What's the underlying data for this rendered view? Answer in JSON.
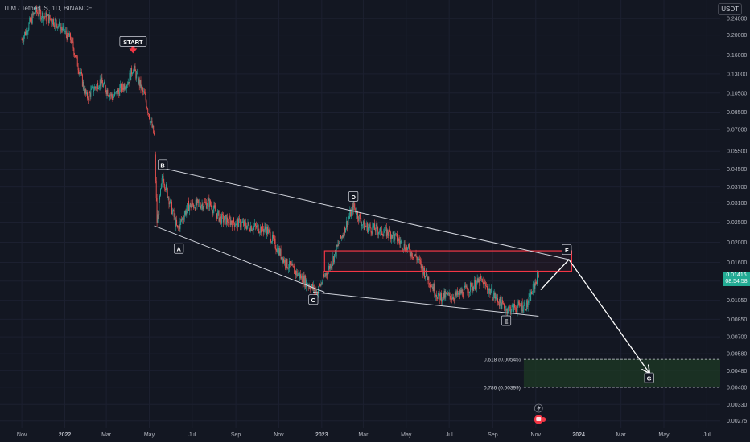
{
  "header": {
    "symbol_text": "TLM / TetherUS, 1D, BINANCE",
    "currency": "USDT"
  },
  "price_tag": {
    "value": "0.01416",
    "countdown": "08:54:58"
  },
  "icons": [
    "lightning-icon",
    "flag-icon"
  ],
  "colors": {
    "background": "#131722",
    "bull": "#26a69a",
    "bear": "#ef5350",
    "zone_red": "#f23645",
    "zone_green": "#1e3a24",
    "lines": "#d1d4dc",
    "start_arrow": "#f23645"
  },
  "chart_data": {
    "type": "candlestick",
    "title": "",
    "y_scale": "log",
    "ylim": [
      0.0026,
      0.27
    ],
    "y_ticks": [
      "0.24000",
      "0.20000",
      "0.16000",
      "0.13000",
      "0.10500",
      "0.08500",
      "0.07000",
      "0.05500",
      "0.04500",
      "0.03700",
      "0.03100",
      "0.02500",
      "0.02000",
      "0.01600",
      "0.01300",
      "0.01050",
      "0.00850",
      "0.00700",
      "0.00580",
      "0.00480",
      "0.00400",
      "0.00330",
      "0.00275"
    ],
    "x_ticks": [
      "Nov",
      "2022",
      "Mar",
      "May",
      "Jul",
      "Sep",
      "Nov",
      "2023",
      "Mar",
      "May",
      "Jul",
      "Sep",
      "Nov",
      "2024",
      "Mar",
      "May",
      "Jul"
    ],
    "price_path": [
      [
        "2021-11-01",
        0.19
      ],
      [
        "2021-11-20",
        0.26
      ],
      [
        "2021-12-20",
        0.23
      ],
      [
        "2022-01-10",
        0.19
      ],
      [
        "2022-02-01",
        0.1
      ],
      [
        "2022-02-20",
        0.12
      ],
      [
        "2022-03-10",
        0.1
      ],
      [
        "2022-04-01",
        0.12
      ],
      [
        "2022-04-08",
        0.14
      ],
      [
        "2022-04-25",
        0.1
      ],
      [
        "2022-05-08",
        0.065
      ],
      [
        "2022-05-12",
        0.025
      ],
      [
        "2022-05-20",
        0.042
      ],
      [
        "2022-06-10",
        0.023
      ],
      [
        "2022-06-25",
        0.03
      ],
      [
        "2022-07-25",
        0.031
      ],
      [
        "2022-08-10",
        0.026
      ],
      [
        "2022-09-20",
        0.024
      ],
      [
        "2022-10-15",
        0.023
      ],
      [
        "2022-11-10",
        0.016
      ],
      [
        "2022-12-25",
        0.0115
      ],
      [
        "2023-01-15",
        0.016
      ],
      [
        "2023-02-15",
        0.03
      ],
      [
        "2023-03-01",
        0.024
      ],
      [
        "2023-04-10",
        0.022
      ],
      [
        "2023-05-15",
        0.017
      ],
      [
        "2023-06-15",
        0.011
      ],
      [
        "2023-07-10",
        0.011
      ],
      [
        "2023-08-15",
        0.013
      ],
      [
        "2023-09-20",
        0.0095
      ],
      [
        "2023-10-20",
        0.01
      ],
      [
        "2023-11-05",
        0.0142
      ]
    ],
    "wave_labels": [
      {
        "label": "START",
        "x": "2022-04-08",
        "y": 0.185
      },
      {
        "label": "A",
        "x": "2022-06-12",
        "y": 0.0185
      },
      {
        "label": "B",
        "x": "2022-05-20",
        "y": 0.047
      },
      {
        "label": "C",
        "x": "2022-12-20",
        "y": 0.0105
      },
      {
        "label": "D",
        "x": "2023-02-15",
        "y": 0.033
      },
      {
        "label": "E",
        "x": "2023-09-20",
        "y": 0.0083
      },
      {
        "label": "F",
        "x": "2023-12-15",
        "y": 0.0183
      },
      {
        "label": "G",
        "x": "2024-04-10",
        "y": 0.0044
      }
    ],
    "trendlines": [
      {
        "from": [
          "2022-05-15",
          0.046
        ],
        "to": [
          "2023-12-18",
          0.0165
        ]
      },
      {
        "from": [
          "2022-05-08",
          0.024
        ],
        "to": [
          "2023-01-05",
          0.0115
        ]
      },
      {
        "from": [
          "2022-12-20",
          0.0115
        ],
        "to": [
          "2023-11-05",
          0.0088
        ]
      }
    ],
    "projection": [
      [
        "2023-11-08",
        0.0118
      ],
      [
        "2023-12-18",
        0.0165
      ],
      [
        "2024-04-10",
        0.0047
      ]
    ],
    "zones": [
      {
        "kind": "resistance",
        "x0": "2023-01-05",
        "x1": "2023-12-22",
        "y0": 0.0145,
        "y1": 0.0182
      },
      {
        "kind": "target",
        "x0": "2023-10-15",
        "x1": "2024-07-31",
        "y0": 0.00399,
        "y1": 0.00545
      }
    ],
    "fib_labels": [
      {
        "text": "0.618 (0.00545)",
        "y": 0.00545
      },
      {
        "text": "0.786 (0.00399)",
        "y": 0.00399
      }
    ]
  }
}
